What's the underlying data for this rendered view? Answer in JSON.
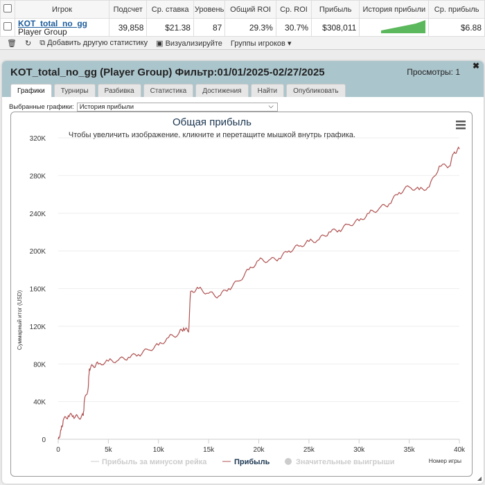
{
  "table": {
    "headers": [
      "Игрок",
      "Подсчет",
      "Ср. ставка",
      "Уровень",
      "Общий ROI",
      "Ср. ROI",
      "Прибыль",
      "История прибыли",
      "Ср. прибыль"
    ],
    "row": {
      "name": "KOT_total_no_gg",
      "type": "Player Group",
      "count": "39,858",
      "avg_stake": "$21.38",
      "level": "87",
      "total_roi": "29.3%",
      "avg_roi": "30.7%",
      "profit": "$308,011",
      "avg_profit": "$6.88"
    }
  },
  "toolbar": {
    "add_stat": "Добавить другую статистику",
    "visualize": "Визуализируйте",
    "groups": "Группы игроков"
  },
  "panel": {
    "title": "KOT_total_no_gg (Player Group) Фильтр:01/01/2025-02/27/2025",
    "views": "Просмотры: 1",
    "tabs": [
      "Графики",
      "Турниры",
      "Разбивка",
      "Статистика",
      "Достижения",
      "Найти",
      "Опубликовать"
    ],
    "selected_label": "Выбранные графики:",
    "selected_value": "История прибыли"
  },
  "chart_data": {
    "type": "line",
    "title": "Общая прибыль",
    "subtitle": "Чтобы увеличить изображение, кликните и перетащите мышкой внутрь графика.",
    "xlabel": "Номер игры",
    "ylabel": "Суммарный итог (USD)",
    "xlim": [
      0,
      40000
    ],
    "ylim": [
      0,
      320000
    ],
    "xticks": [
      "0",
      "5k",
      "10k",
      "15k",
      "20k",
      "25k",
      "30k",
      "35k",
      "40k"
    ],
    "yticks": [
      "0",
      "40K",
      "80K",
      "120K",
      "160K",
      "200K",
      "240K",
      "280K",
      "320K"
    ],
    "legend": [
      "Прибыль за минусом рейка",
      "Прибыль",
      "Значительные выигрыши"
    ],
    "color": "#b05050",
    "series": [
      {
        "name": "Прибыль",
        "x": [
          0,
          300,
          500,
          1000,
          1500,
          2000,
          2500,
          2600,
          3000,
          3100,
          3500,
          4000,
          5000,
          6000,
          7000,
          8000,
          9000,
          10000,
          11000,
          12000,
          12500,
          13000,
          13200,
          14000,
          15000,
          16000,
          17000,
          18000,
          19000,
          20000,
          21000,
          22000,
          23000,
          24000,
          25000,
          26000,
          27000,
          28000,
          29000,
          30000,
          31000,
          32000,
          33000,
          34000,
          35000,
          36000,
          37000,
          38000,
          39000,
          39500,
          40000
        ],
        "y": [
          0,
          10000,
          20000,
          25000,
          25000,
          23000,
          25000,
          40000,
          55000,
          75000,
          78000,
          80000,
          83000,
          84000,
          87000,
          90000,
          95000,
          100000,
          108000,
          112000,
          118000,
          114000,
          157000,
          160000,
          155000,
          152000,
          160000,
          168000,
          180000,
          190000,
          190000,
          192000,
          200000,
          205000,
          210000,
          212000,
          220000,
          222000,
          228000,
          232000,
          240000,
          245000,
          250000,
          262000,
          268000,
          265000,
          268000,
          290000,
          290000,
          305000,
          308000
        ]
      }
    ]
  }
}
